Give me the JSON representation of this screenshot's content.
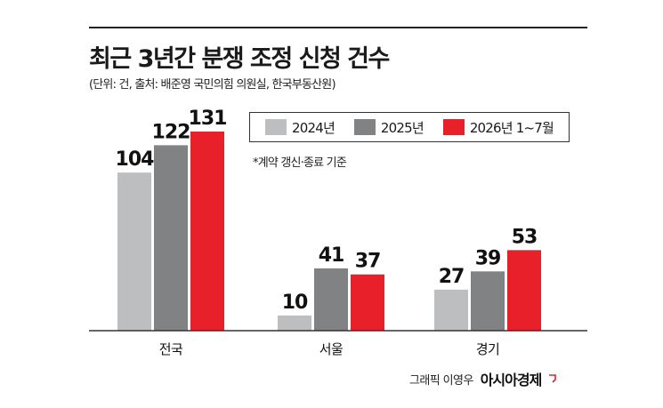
{
  "title": "최근 3년간 분쟁 조정 신청 건수",
  "subtitle": "(단위: 건, 출처: 배준영 국민의힘 의원실, 한국부동산원)",
  "note": "*계약 갱신·종료 기준",
  "credit": {
    "text": "그래픽 이영우",
    "brand": "아시아경제"
  },
  "colors": {
    "s2024": "#bdbec0",
    "s2025": "#808284",
    "s2026": "#e8202a",
    "accent": "#e8202a"
  },
  "chart_data": {
    "type": "bar",
    "title": "최근 3년간 분쟁 조정 신청 건수",
    "subtitle": "(단위: 건, 출처: 배준영 국민의힘 의원실, 한국부동산원)",
    "categories": [
      "전국",
      "서울",
      "경기"
    ],
    "series": [
      {
        "name": "2024년",
        "values": [
          104,
          10,
          27
        ]
      },
      {
        "name": "2025년",
        "values": [
          122,
          41,
          39
        ]
      },
      {
        "name": "2026년 1~7월",
        "values": [
          131,
          37,
          53
        ]
      }
    ],
    "ylim": [
      0,
      131
    ],
    "grid": false,
    "legend": "top-right"
  }
}
